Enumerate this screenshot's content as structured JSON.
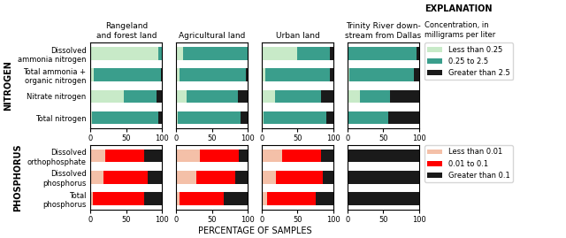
{
  "chart_data": [
    {
      "type": "bar",
      "orientation": "horizontal",
      "stacked": true,
      "title": "Rangeland\nand forest land",
      "ylabel": "NITROGEN",
      "categories": [
        "Dissolved\nammonia nitrogen",
        "Total ammonia +\norganic nitrogen",
        "Nitrate nitrogen",
        "Total nitrogen"
      ],
      "series": [
        {
          "name": "Less than 0.25",
          "color": "#c8eac8",
          "values": [
            95,
            5,
            47,
            2
          ]
        },
        {
          "name": "0.25 to 2.5",
          "color": "#3a9e8c",
          "values": [
            5,
            93,
            45,
            93
          ]
        },
        {
          "name": "Greater than 2.5",
          "color": "#1a1a1a",
          "values": [
            0,
            2,
            8,
            5
          ]
        }
      ],
      "xlim": [
        0,
        100
      ],
      "xticks": [
        0,
        50,
        100
      ]
    },
    {
      "type": "bar",
      "orientation": "horizontal",
      "stacked": true,
      "title": "Agricultural land",
      "tick_labels": "x",
      "categories": [
        "Dissolved\nammonia nitrogen",
        "Total ammonia +\norganic nitrogen",
        "Nitrate nitrogen",
        "Total nitrogen"
      ],
      "series": [
        {
          "name": "Less than 0.25",
          "color": "#c8eac8",
          "values": [
            10,
            5,
            15,
            2
          ]
        },
        {
          "name": "0.25 to 2.5",
          "color": "#3a9e8c",
          "values": [
            90,
            93,
            72,
            88
          ]
        },
        {
          "name": "Greater than 2.5",
          "color": "#1a1a1a",
          "values": [
            0,
            2,
            13,
            10
          ]
        }
      ],
      "xlim": [
        0,
        100
      ],
      "xticks": [
        0,
        50,
        100
      ]
    },
    {
      "type": "bar",
      "orientation": "horizontal",
      "stacked": true,
      "title": "Urban land",
      "tick_labels": "x",
      "categories": [
        "Dissolved\nammonia nitrogen",
        "Total ammonia +\norganic nitrogen",
        "Nitrate nitrogen",
        "Total nitrogen"
      ],
      "series": [
        {
          "name": "Less than 0.25",
          "color": "#c8eac8",
          "values": [
            50,
            5,
            18,
            2
          ]
        },
        {
          "name": "0.25 to 2.5",
          "color": "#3a9e8c",
          "values": [
            45,
            90,
            65,
            88
          ]
        },
        {
          "name": "Greater than 2.5",
          "color": "#1a1a1a",
          "values": [
            5,
            5,
            17,
            10
          ]
        }
      ],
      "xlim": [
        0,
        100
      ],
      "xticks": [
        0,
        50,
        100
      ]
    },
    {
      "type": "bar",
      "orientation": "horizontal",
      "stacked": true,
      "title": "Trinity River down-\nstream from Dallas",
      "tick_labels": "x",
      "legend": "upper left",
      "categories": [
        "Dissolved\nammonia nitrogen",
        "Total ammonia +\norganic nitrogen",
        "Nitrate nitrogen",
        "Total nitrogen"
      ],
      "series": [
        {
          "name": "Less than 0.25",
          "color": "#c8eac8",
          "values": [
            2,
            3,
            18,
            2
          ]
        },
        {
          "name": "0.25 to 2.5",
          "color": "#3a9e8c",
          "values": [
            95,
            90,
            42,
            55
          ]
        },
        {
          "name": "Greater than 2.5",
          "color": "#1a1a1a",
          "values": [
            3,
            7,
            40,
            43
          ]
        }
      ],
      "xlim": [
        0,
        100
      ],
      "xticks": [
        0,
        50,
        100
      ]
    },
    {
      "type": "bar",
      "orientation": "horizontal",
      "stacked": true,
      "ylabel": "PHOSPHORUS",
      "categories": [
        "Dissolved\northophosphate",
        "Dissolved\nphosphorus",
        "Total\nphosphorus"
      ],
      "series": [
        {
          "name": "Less than 0.01",
          "color": "#f4c0a8",
          "values": [
            20,
            18,
            3
          ]
        },
        {
          "name": "0.01 to 0.1",
          "color": "#ff0000",
          "values": [
            55,
            62,
            72
          ]
        },
        {
          "name": "Greater than 0.1",
          "color": "#1a1a1a",
          "values": [
            25,
            20,
            25
          ]
        }
      ],
      "xlim": [
        0,
        100
      ],
      "xticks": [
        0,
        50,
        100
      ]
    },
    {
      "type": "bar",
      "orientation": "horizontal",
      "stacked": true,
      "tick_labels": "x",
      "categories": [
        "Dissolved\northophosphate",
        "Dissolved\nphosphorus",
        "Total\nphosphorus"
      ],
      "series": [
        {
          "name": "Less than 0.01",
          "color": "#f4c0a8",
          "values": [
            33,
            28,
            5
          ]
        },
        {
          "name": "0.01 to 0.1",
          "color": "#ff0000",
          "values": [
            55,
            55,
            62
          ]
        },
        {
          "name": "Greater than 0.1",
          "color": "#1a1a1a",
          "values": [
            12,
            17,
            33
          ]
        }
      ],
      "xlim": [
        0,
        100
      ],
      "xticks": [
        0,
        50,
        100
      ]
    },
    {
      "type": "bar",
      "orientation": "horizontal",
      "stacked": true,
      "tick_labels": "x",
      "categories": [
        "Dissolved\northophosphate",
        "Dissolved\nphosphorus",
        "Total\nphosphorus"
      ],
      "series": [
        {
          "name": "Less than 0.01",
          "color": "#f4c0a8",
          "values": [
            28,
            20,
            8
          ]
        },
        {
          "name": "0.01 to 0.1",
          "color": "#ff0000",
          "values": [
            55,
            65,
            68
          ]
        },
        {
          "name": "Greater than 0.1",
          "color": "#1a1a1a",
          "values": [
            17,
            15,
            24
          ]
        }
      ],
      "xlim": [
        0,
        100
      ],
      "xticks": [
        0,
        50,
        100
      ]
    },
    {
      "type": "bar",
      "orientation": "horizontal",
      "stacked": true,
      "tick_labels": "x",
      "legend": "upper left",
      "categories": [
        "Dissolved\northophosphate",
        "Dissolved\nphosphorus",
        "Total\nphosphorus"
      ],
      "series": [
        {
          "name": "Less than 0.01",
          "color": "#f4c0a8",
          "values": [
            0,
            0,
            0
          ]
        },
        {
          "name": "0.01 to 0.1",
          "color": "#ff0000",
          "values": [
            0,
            0,
            0
          ]
        },
        {
          "name": "Greater than 0.1",
          "color": "#1a1a1a",
          "values": [
            100,
            100,
            100
          ]
        }
      ],
      "xlim": [
        0,
        100
      ],
      "xticks": [
        0,
        50,
        100
      ]
    }
  ],
  "xlabel": "PERCENTAGE OF SAMPLES",
  "annotations": [
    "EXPLANATION",
    "Concentration, in\nmilligrams per liter"
  ]
}
